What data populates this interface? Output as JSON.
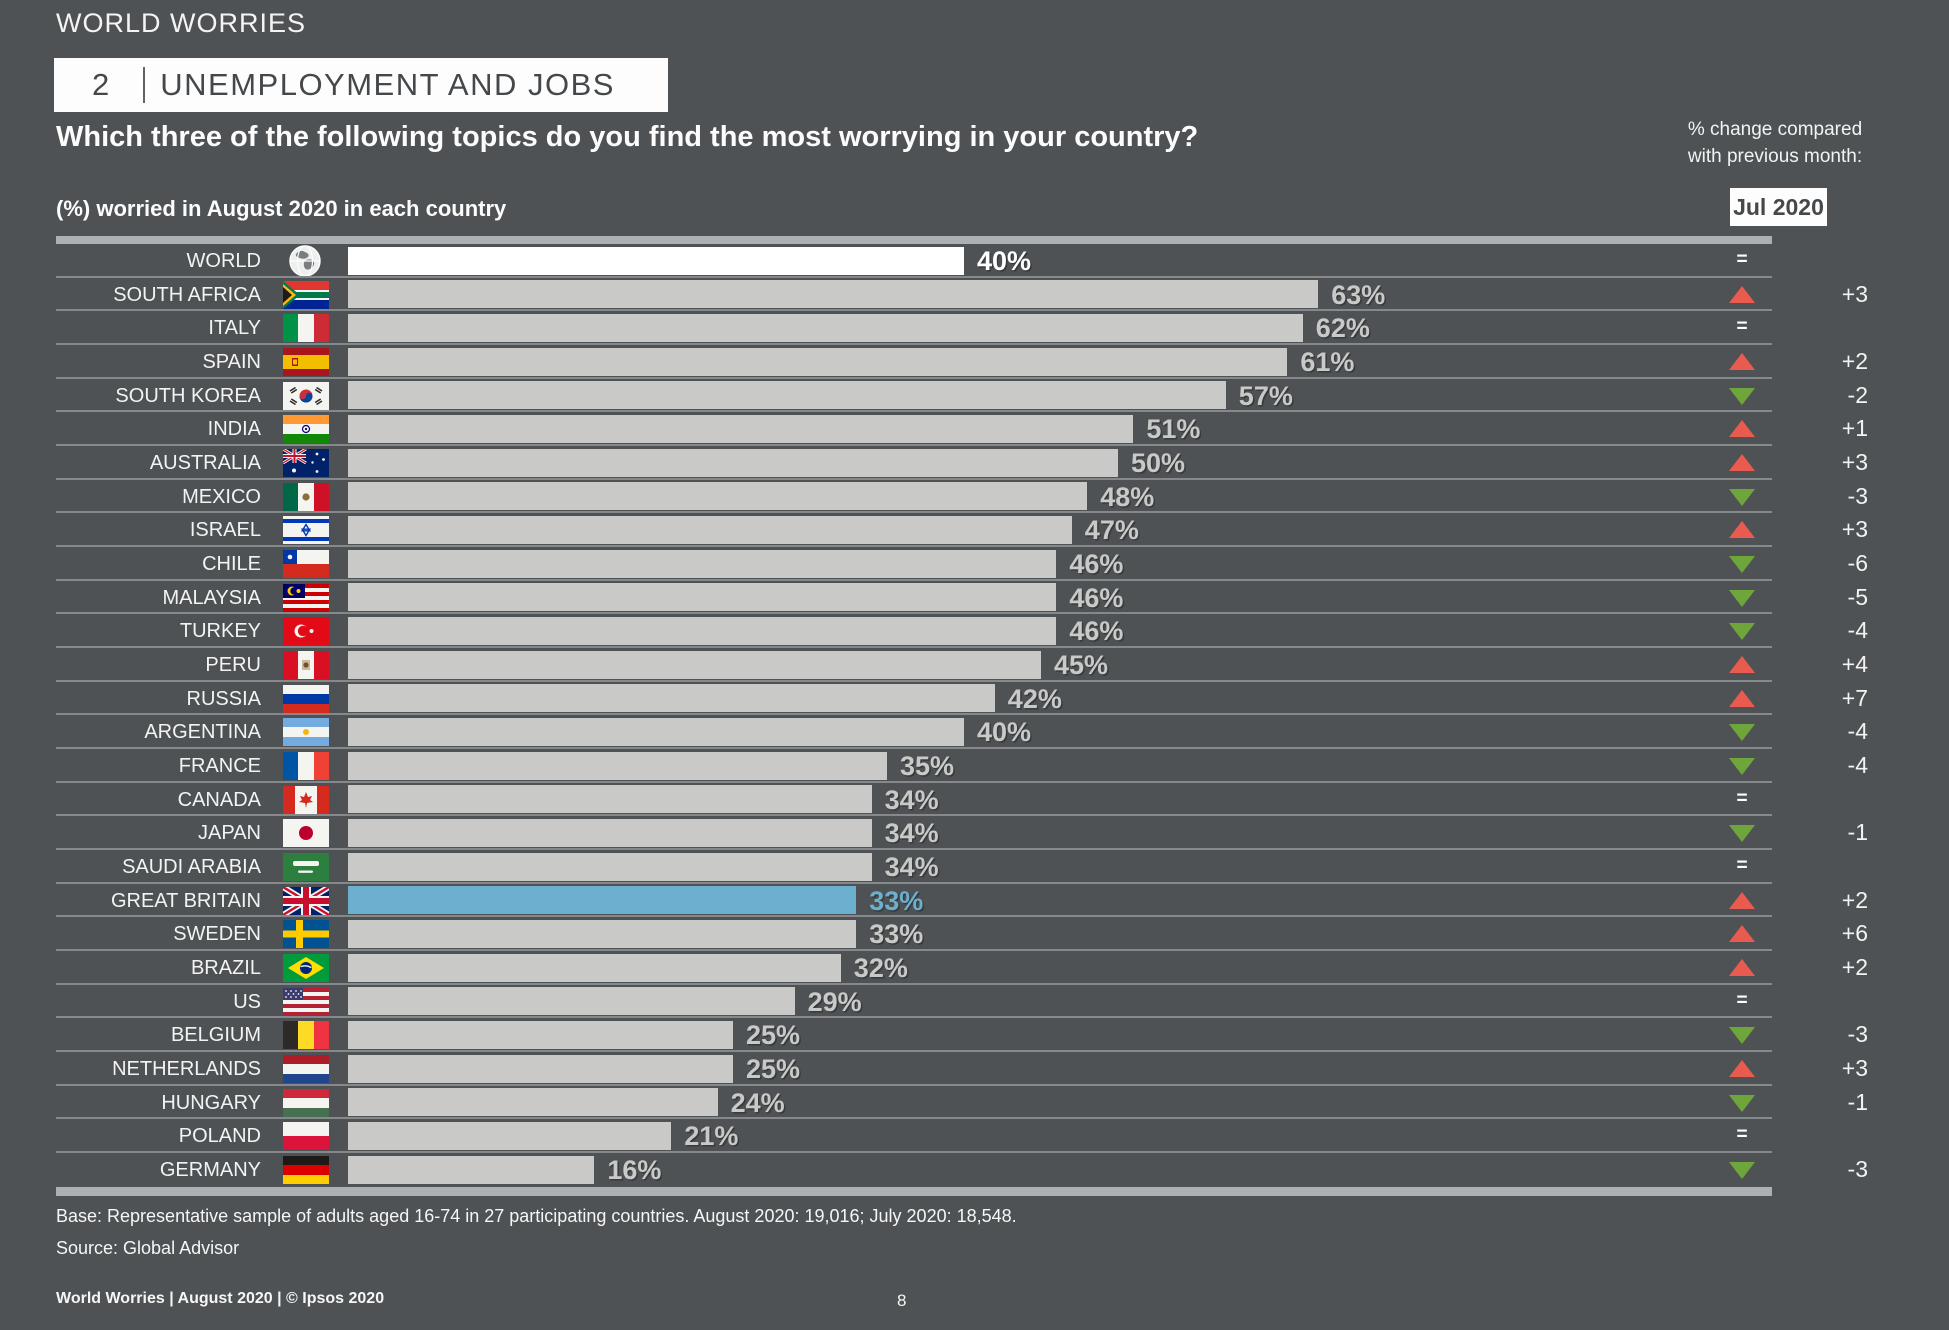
{
  "header": {
    "brand": "WORLD WORRIES",
    "section_number": "2",
    "section_title": "UNEMPLOYMENT AND JOBS",
    "question": "Which three of the following topics do you find the most worrying in your country?",
    "subtitle": "(%) worried in August 2020 in each country",
    "change_note_line1": "% change compared",
    "change_note_line2": "with previous month:",
    "change_month": "Jul 2020"
  },
  "chart_data": {
    "type": "bar",
    "orientation": "horizontal",
    "title": "Which three of the following topics do you find the most worrying in your country?",
    "subtitle": "(%) worried in August 2020 in each country",
    "value_unit": "%",
    "xlim": [
      0,
      70
    ],
    "change_reference": "Jul 2020",
    "rows": [
      {
        "country": "WORLD",
        "flag": "world",
        "value": 40,
        "change": "=",
        "direction": "same",
        "style": "world"
      },
      {
        "country": "SOUTH AFRICA",
        "flag": "za",
        "value": 63,
        "change": "+3",
        "direction": "up",
        "style": "normal"
      },
      {
        "country": "ITALY",
        "flag": "it",
        "value": 62,
        "change": "=",
        "direction": "same",
        "style": "normal"
      },
      {
        "country": "SPAIN",
        "flag": "es",
        "value": 61,
        "change": "+2",
        "direction": "up",
        "style": "normal"
      },
      {
        "country": "SOUTH KOREA",
        "flag": "kr",
        "value": 57,
        "change": "-2",
        "direction": "down",
        "style": "normal"
      },
      {
        "country": "INDIA",
        "flag": "in",
        "value": 51,
        "change": "+1",
        "direction": "up",
        "style": "normal"
      },
      {
        "country": "AUSTRALIA",
        "flag": "au",
        "value": 50,
        "change": "+3",
        "direction": "up",
        "style": "normal"
      },
      {
        "country": "MEXICO",
        "flag": "mx",
        "value": 48,
        "change": "-3",
        "direction": "down",
        "style": "normal"
      },
      {
        "country": "ISRAEL",
        "flag": "il",
        "value": 47,
        "change": "+3",
        "direction": "up",
        "style": "normal"
      },
      {
        "country": "CHILE",
        "flag": "cl",
        "value": 46,
        "change": "-6",
        "direction": "down",
        "style": "normal"
      },
      {
        "country": "MALAYSIA",
        "flag": "my",
        "value": 46,
        "change": "-5",
        "direction": "down",
        "style": "normal"
      },
      {
        "country": "TURKEY",
        "flag": "tr",
        "value": 46,
        "change": "-4",
        "direction": "down",
        "style": "normal"
      },
      {
        "country": "PERU",
        "flag": "pe",
        "value": 45,
        "change": "+4",
        "direction": "up",
        "style": "normal"
      },
      {
        "country": "RUSSIA",
        "flag": "ru",
        "value": 42,
        "change": "+7",
        "direction": "up",
        "style": "normal"
      },
      {
        "country": "ARGENTINA",
        "flag": "ar",
        "value": 40,
        "change": "-4",
        "direction": "down",
        "style": "normal"
      },
      {
        "country": "FRANCE",
        "flag": "fr",
        "value": 35,
        "change": "-4",
        "direction": "down",
        "style": "normal"
      },
      {
        "country": "CANADA",
        "flag": "ca",
        "value": 34,
        "change": "=",
        "direction": "same",
        "style": "normal"
      },
      {
        "country": "JAPAN",
        "flag": "jp",
        "value": 34,
        "change": "-1",
        "direction": "down",
        "style": "normal"
      },
      {
        "country": "SAUDI ARABIA",
        "flag": "sa",
        "value": 34,
        "change": "=",
        "direction": "same",
        "style": "normal"
      },
      {
        "country": "GREAT BRITAIN",
        "flag": "gb",
        "value": 33,
        "change": "+2",
        "direction": "up",
        "style": "highlight"
      },
      {
        "country": "SWEDEN",
        "flag": "se",
        "value": 33,
        "change": "+6",
        "direction": "up",
        "style": "normal"
      },
      {
        "country": "BRAZIL",
        "flag": "br",
        "value": 32,
        "change": "+2",
        "direction": "up",
        "style": "normal"
      },
      {
        "country": "US",
        "flag": "us",
        "value": 29,
        "change": "=",
        "direction": "same",
        "style": "normal"
      },
      {
        "country": "BELGIUM",
        "flag": "be",
        "value": 25,
        "change": "-3",
        "direction": "down",
        "style": "normal"
      },
      {
        "country": "NETHERLANDS",
        "flag": "nl",
        "value": 25,
        "change": "+3",
        "direction": "up",
        "style": "normal"
      },
      {
        "country": "HUNGARY",
        "flag": "hu",
        "value": 24,
        "change": "-1",
        "direction": "down",
        "style": "normal"
      },
      {
        "country": "POLAND",
        "flag": "pl",
        "value": 21,
        "change": "=",
        "direction": "same",
        "style": "normal"
      },
      {
        "country": "GERMANY",
        "flag": "de",
        "value": 16,
        "change": "-3",
        "direction": "down",
        "style": "normal"
      }
    ]
  },
  "colors": {
    "bg": "#4E5254",
    "bar": "#C9CAC8",
    "bar_world": "#FFFFFF",
    "bar_highlight": "#6CAFCE",
    "value_label": "#C9CAC8",
    "up": "#E95B4F",
    "down": "#6FA63C",
    "rule": "#ACB0B2",
    "separator": "#85898B",
    "text": "#F2F3F3",
    "box_text": "#44484A"
  },
  "footnotes": {
    "base": "Base: Representative sample of adults aged 16-74 in 27 participating countries. August 2020: 19,016; July 2020: 18,548.",
    "source": "Source: Global Advisor"
  },
  "footer": {
    "left": "World Worries | August 2020 | © Ipsos 2020",
    "page": "8"
  }
}
